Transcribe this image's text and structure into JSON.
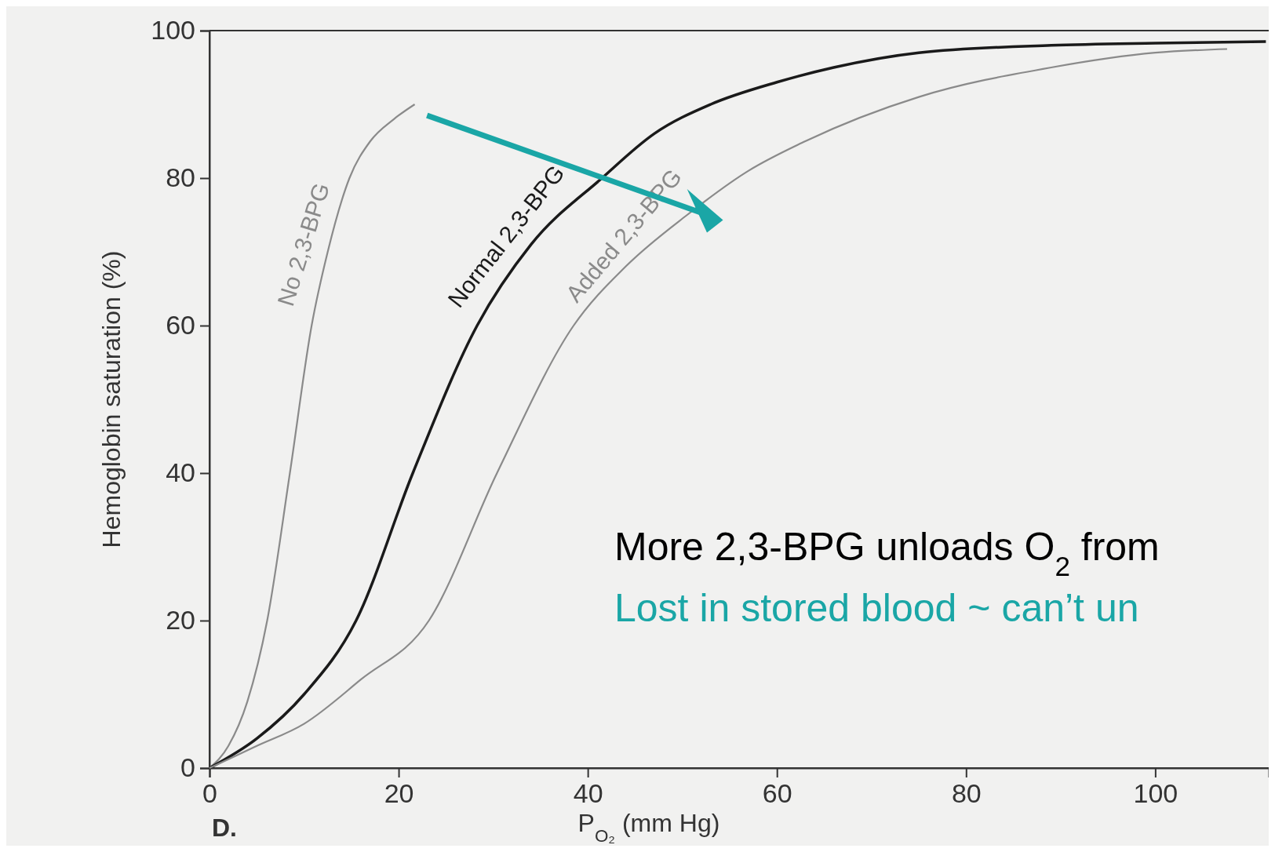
{
  "chart_data": {
    "type": "line",
    "xlabel": "P$_{O₂}$ (mm Hg)",
    "ylabel": "Hemoglobin saturation (%)",
    "xlim": [
      0,
      112
    ],
    "ylim": [
      0,
      100
    ],
    "xticks": [
      0,
      20,
      40,
      60,
      80,
      100
    ],
    "yticks": [
      0,
      20,
      40,
      60,
      80,
      100
    ],
    "grid": false,
    "line_style": "solid",
    "series": [
      {
        "name": "No 2,3-BPG",
        "color": "#8a8a8a",
        "x": [
          0,
          2,
          4,
          6.1,
          8.5,
          10.8,
          12.5,
          14.8,
          17,
          19.5,
          21.7
        ],
        "values": [
          0,
          3,
          9,
          20,
          40,
          60,
          70,
          80,
          85,
          88,
          90
        ]
      },
      {
        "name": "Normal 2,3-BPG",
        "color": "#1a1a1a",
        "x": [
          0,
          5,
          10,
          15.5,
          21.5,
          28.3,
          34,
          41.5,
          47,
          53,
          60,
          66,
          75,
          89,
          100,
          111.7
        ],
        "values": [
          0,
          4,
          10,
          20,
          40,
          60,
          71,
          80,
          86,
          90,
          93,
          95,
          97,
          98,
          98.3,
          98.5
        ]
      },
      {
        "name": "Added 2,3-BPG",
        "color": "#8a8a8a",
        "x": [
          0,
          5,
          10,
          16,
          23.2,
          30.4,
          38.5,
          44,
          50.5,
          57,
          63,
          75,
          89,
          100,
          107.6
        ],
        "values": [
          0,
          3,
          6,
          12,
          20,
          40,
          60,
          68,
          75,
          81,
          85,
          91,
          95,
          97,
          97.5
        ]
      }
    ],
    "annotations": [
      "D.",
      "More 2,3-BPG unloads O$_{2}$ from",
      "Lost in stored blood ~ can’t un"
    ]
  }
}
